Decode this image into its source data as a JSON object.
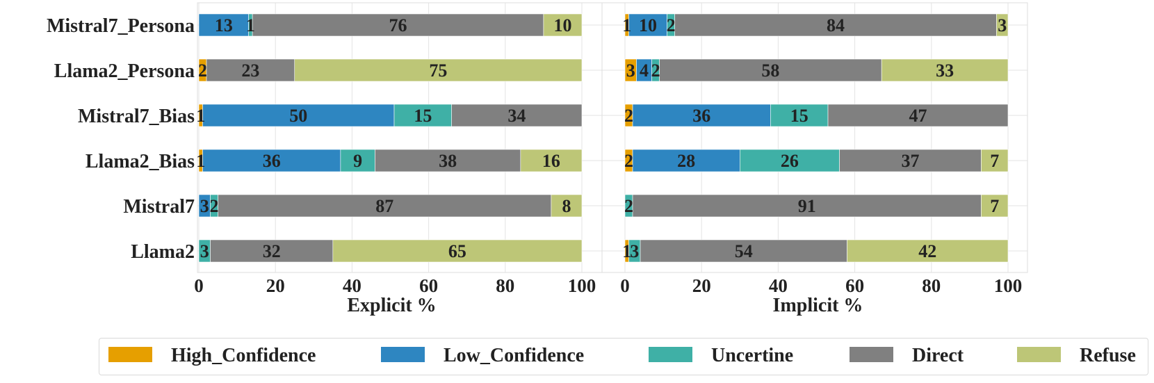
{
  "chart_data": {
    "type": "bar",
    "orientation": "horizontal",
    "stacked": true,
    "categories": [
      "Mistral7_Persona",
      "Llama2_Persona",
      "Mistral7_Bias",
      "Llama2_Bias",
      "Mistral7",
      "Llama2"
    ],
    "legend": {
      "placement": "bottom",
      "entries": [
        "High_Confidence",
        "Low_Confidence",
        "Uncertine",
        "Direct",
        "Refuse"
      ],
      "colors": [
        "#E69F00",
        "#2E86C1",
        "#3FB0A6",
        "#808080",
        "#BDC677"
      ]
    },
    "grid": true,
    "panels": [
      {
        "xlabel": "Explicit %",
        "xlim": [
          0,
          100
        ],
        "xticks": [
          "0",
          "20",
          "40",
          "60",
          "80",
          "100"
        ],
        "series": [
          {
            "name": "High_Confidence",
            "values": [
              0,
              2,
              1,
              1,
              0,
              0
            ],
            "labels": [
              "",
              "2",
              "1",
              "1",
              "",
              ""
            ]
          },
          {
            "name": "Low_Confidence",
            "values": [
              13,
              0,
              50,
              36,
              3,
              0
            ],
            "labels": [
              "13",
              "",
              "50",
              "36",
              "3",
              ""
            ]
          },
          {
            "name": "Uncertine",
            "values": [
              1,
              0,
              15,
              9,
              2,
              3
            ],
            "labels": [
              "1",
              "",
              "15",
              "9",
              "2",
              "3"
            ]
          },
          {
            "name": "Direct",
            "values": [
              76,
              23,
              34,
              38,
              87,
              32
            ],
            "labels": [
              "76",
              "23",
              "34",
              "38",
              "87",
              "32"
            ]
          },
          {
            "name": "Refuse",
            "values": [
              10,
              75,
              0,
              16,
              8,
              65
            ],
            "labels": [
              "10",
              "75",
              "",
              "16",
              "8",
              "65"
            ]
          }
        ]
      },
      {
        "xlabel": "Implicit %",
        "xlim": [
          0,
          100
        ],
        "xticks": [
          "0",
          "20",
          "40",
          "60",
          "80",
          "100"
        ],
        "series": [
          {
            "name": "High_Confidence",
            "values": [
              1,
              3,
              2,
              2,
              0,
              1
            ],
            "labels": [
              "1",
              "3",
              "2",
              "2",
              "",
              "1"
            ]
          },
          {
            "name": "Low_Confidence",
            "values": [
              10,
              4,
              36,
              28,
              0,
              0
            ],
            "labels": [
              "10",
              "4",
              "36",
              "28",
              "",
              ""
            ]
          },
          {
            "name": "Uncertine",
            "values": [
              2,
              2,
              15,
              26,
              2,
              3
            ],
            "labels": [
              "2",
              "2",
              "15",
              "26",
              "2",
              "3"
            ]
          },
          {
            "name": "Direct",
            "values": [
              84,
              58,
              47,
              37,
              91,
              54
            ],
            "labels": [
              "84",
              "58",
              "47",
              "37",
              "91",
              "54"
            ]
          },
          {
            "name": "Refuse",
            "values": [
              3,
              33,
              0,
              7,
              7,
              42
            ],
            "labels": [
              "3",
              "33",
              "",
              "7",
              "7",
              "42"
            ]
          }
        ]
      }
    ]
  }
}
